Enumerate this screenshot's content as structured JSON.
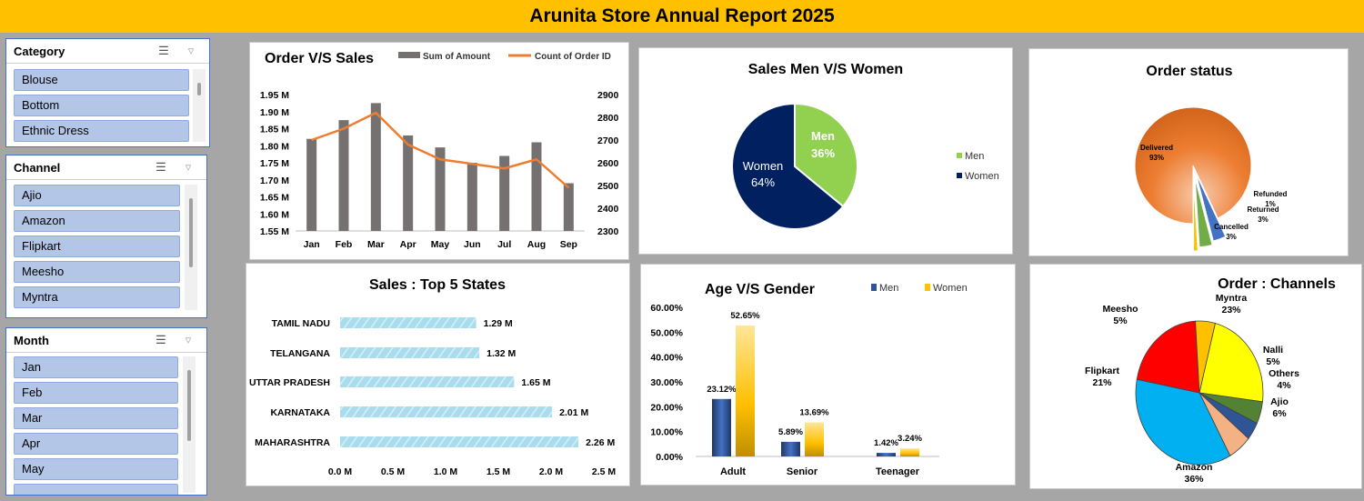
{
  "header": {
    "title": "Arunita Store Annual Report 2025"
  },
  "slicers": {
    "category": {
      "title": "Category",
      "items": [
        "Blouse",
        "Bottom",
        "Ethnic Dress"
      ]
    },
    "channel": {
      "title": "Channel",
      "items": [
        "Ajio",
        "Amazon",
        "Flipkart",
        "Meesho",
        "Myntra"
      ]
    },
    "month": {
      "title": "Month",
      "items": [
        "Jan",
        "Feb",
        "Mar",
        "Apr",
        "May"
      ]
    }
  },
  "chart_data": [
    {
      "id": "order-vs-sales",
      "type": "bar",
      "title": "Order V/S Sales",
      "categories": [
        "Jan",
        "Feb",
        "Mar",
        "Apr",
        "May",
        "Jun",
        "Jul",
        "Aug",
        "Sep"
      ],
      "series": [
        {
          "name": "Sum of Amount",
          "type": "bar",
          "axis": "left",
          "values": [
            1.82,
            1.875,
            1.925,
            1.83,
            1.795,
            1.75,
            1.77,
            1.81,
            1.69
          ]
        },
        {
          "name": "Count of Order ID",
          "type": "line",
          "axis": "right",
          "values": [
            2700,
            2750,
            2820,
            2680,
            2615,
            2595,
            2575,
            2615,
            2490
          ]
        }
      ],
      "left_axis": {
        "ylim": [
          1.55,
          1.95
        ],
        "ticks": [
          "1.55 M",
          "1.60 M",
          "1.65 M",
          "1.70 M",
          "1.75 M",
          "1.80 M",
          "1.85 M",
          "1.90 M",
          "1.95 M"
        ]
      },
      "right_axis": {
        "ylim": [
          2300,
          2900
        ],
        "ticks": [
          "2300",
          "2400",
          "2500",
          "2600",
          "2700",
          "2800",
          "2900"
        ]
      },
      "colors": [
        "#767171",
        "#ed7d31"
      ],
      "legend": "top-right",
      "grid": false
    },
    {
      "id": "sales-men-women",
      "type": "pie",
      "title": "Sales Men V/S Women",
      "labels": [
        "Men",
        "Women"
      ],
      "values": [
        36,
        64
      ],
      "value_labels": [
        "36%",
        "64%"
      ],
      "colors": [
        "#92d050",
        "#002060"
      ],
      "legend": "right"
    },
    {
      "id": "order-status",
      "type": "pie",
      "title": "Order status",
      "labels": [
        "Delivered",
        "Cancelled",
        "Returned",
        "Refunded"
      ],
      "values": [
        93,
        3,
        3,
        1
      ],
      "value_labels": [
        "93%",
        "3%",
        "3%",
        "1%"
      ],
      "colors": [
        "#c55a11",
        "#4472c4",
        "#70ad47",
        "#ffc000"
      ],
      "legend": "none"
    },
    {
      "id": "top5-states",
      "type": "bar",
      "orientation": "horizontal",
      "title": "Sales : Top 5 States",
      "categories": [
        "TAMIL NADU",
        "TELANGANA",
        "UTTAR PRADESH",
        "KARNATAKA",
        "MAHARASHTRA"
      ],
      "values": [
        1.29,
        1.32,
        1.65,
        2.01,
        2.26
      ],
      "value_labels": [
        "1.29 M",
        "1.32 M",
        "1.65 M",
        "2.01 M",
        "2.26 M"
      ],
      "xlim": [
        0,
        2.5
      ],
      "ticks": [
        "0.0 M",
        "0.5 M",
        "1.0 M",
        "1.5 M",
        "2.0 M",
        "2.5 M"
      ],
      "colors": [
        "#9fd6e8"
      ],
      "grid": false
    },
    {
      "id": "age-gender",
      "type": "bar",
      "title": "Age V/S Gender",
      "categories": [
        "Adult",
        "Senior",
        "Teenager"
      ],
      "series": [
        {
          "name": "Men",
          "values": [
            23.12,
            5.89,
            1.42
          ],
          "value_labels": [
            "23.12%",
            "5.89%",
            "1.42%"
          ]
        },
        {
          "name": "Women",
          "values": [
            52.65,
            13.69,
            3.24
          ],
          "value_labels": [
            "52.65%",
            "13.69%",
            "3.24%"
          ]
        }
      ],
      "ylim": [
        0,
        60
      ],
      "ticks": [
        "0.00%",
        "10.00%",
        "20.00%",
        "30.00%",
        "40.00%",
        "50.00%",
        "60.00%"
      ],
      "colors": [
        "#2f5597",
        "#ffc000"
      ],
      "legend": "top-right",
      "grid": false
    },
    {
      "id": "order-channels",
      "type": "pie",
      "title": "Order : Channels",
      "labels": [
        "Myntra",
        "Nalli",
        "Others",
        "Ajio",
        "Amazon",
        "Flipkart",
        "Meesho"
      ],
      "values": [
        23,
        5,
        4,
        6,
        36,
        21,
        5
      ],
      "value_labels": [
        "23%",
        "5%",
        "4%",
        "6%",
        "36%",
        "21%",
        "5%"
      ],
      "colors": [
        "#ffff00",
        "#548235",
        "#2f5597",
        "#f4b183",
        "#00b0f0",
        "#ff0000",
        "#ffc000"
      ],
      "legend": "none"
    }
  ]
}
